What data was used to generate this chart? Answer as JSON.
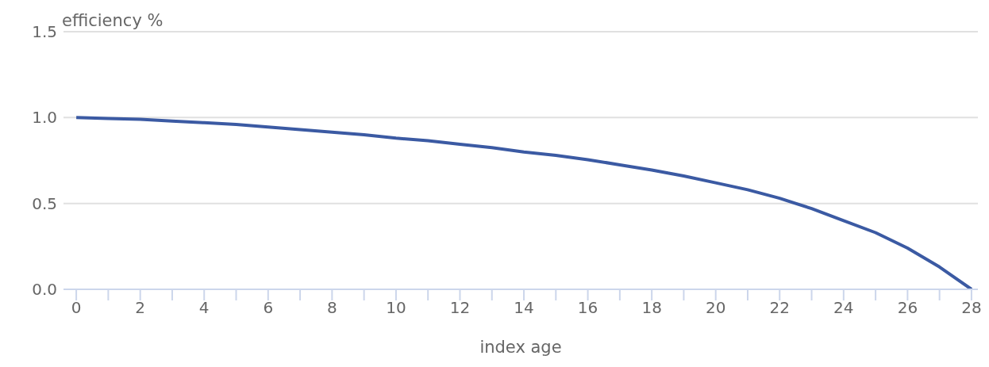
{
  "chart_data": {
    "type": "line",
    "ylabel": "efficiency %",
    "xlabel": "index age",
    "x": [
      0,
      1,
      2,
      3,
      4,
      5,
      6,
      7,
      8,
      9,
      10,
      11,
      12,
      13,
      14,
      15,
      16,
      17,
      18,
      19,
      20,
      21,
      22,
      23,
      24,
      25,
      26,
      27,
      28
    ],
    "series": [
      {
        "color": "#3b5aa3",
        "values": [
          1.0,
          0.995,
          0.99,
          0.98,
          0.97,
          0.96,
          0.945,
          0.93,
          0.915,
          0.9,
          0.88,
          0.865,
          0.845,
          0.825,
          0.8,
          0.78,
          0.755,
          0.725,
          0.695,
          0.66,
          0.62,
          0.58,
          0.53,
          0.47,
          0.4,
          0.33,
          0.24,
          0.13,
          0.0
        ]
      }
    ],
    "xlim": [
      -0.4,
      28.2
    ],
    "xticks": [
      0,
      {
        "value": 1,
        "label": null
      },
      2,
      {
        "value": 3,
        "label": null
      },
      4,
      {
        "value": 5,
        "label": null
      },
      6,
      {
        "value": 7,
        "label": null
      },
      8,
      {
        "value": 9,
        "label": null
      },
      10,
      {
        "value": 11,
        "label": null
      },
      12,
      {
        "value": 13,
        "label": null
      },
      14,
      {
        "value": 15,
        "label": null
      },
      16,
      {
        "value": 17,
        "label": null
      },
      18,
      {
        "value": 19,
        "label": null
      },
      20,
      {
        "value": 21,
        "label": null
      },
      22,
      {
        "value": 23,
        "label": null
      },
      24,
      {
        "value": 25,
        "label": null
      },
      26,
      {
        "value": 27,
        "label": null
      },
      28
    ],
    "ylim": [
      0,
      1.5
    ],
    "yticks": [
      {
        "value": 0,
        "label": "0.0"
      },
      {
        "value": 0.5,
        "label": "0.5"
      },
      {
        "value": 1,
        "label": "1.0"
      },
      {
        "value": 1.5,
        "label": "1.5"
      }
    ],
    "grid": "y",
    "marker": "none",
    "line_style": "solid",
    "legend": false
  }
}
